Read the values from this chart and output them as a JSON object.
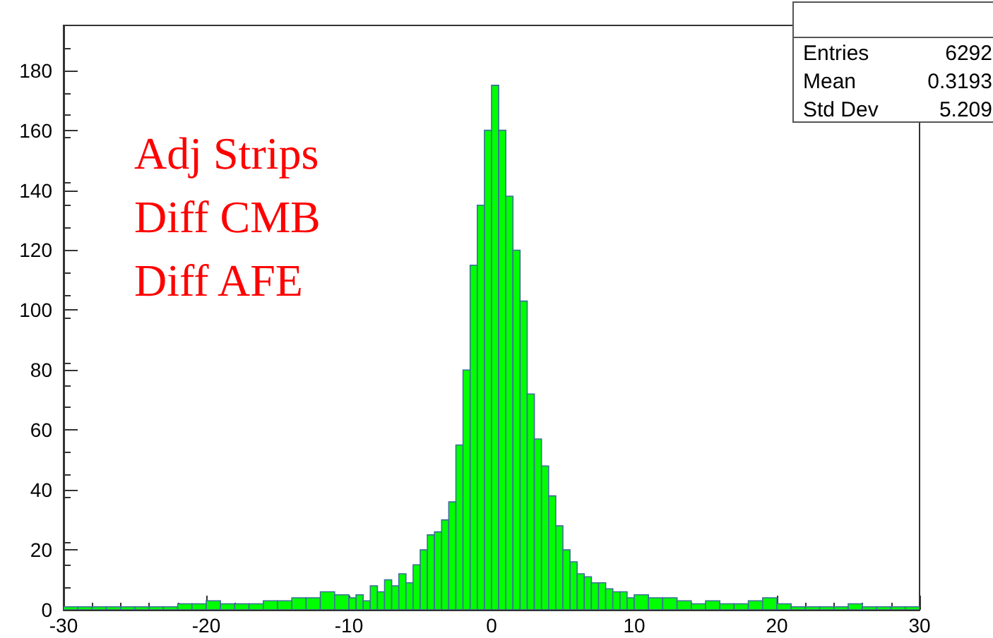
{
  "chart_data": {
    "type": "histogram",
    "bins": [
      -30,
      -29,
      -28,
      -27,
      -26,
      -25,
      -24,
      -23,
      -22,
      -21,
      -20,
      -19,
      -18,
      -17,
      -16,
      -15,
      -14,
      -13,
      -12,
      -11,
      -10,
      -9.5,
      -9,
      -8.5,
      -8,
      -7.5,
      -7,
      -6.5,
      -6,
      -5.5,
      -5,
      -4.5,
      -4,
      -3.5,
      -3,
      -2.5,
      -2,
      -1.5,
      -1,
      -0.5,
      0,
      0.5,
      1,
      1.5,
      2,
      2.5,
      3,
      3.5,
      4,
      4.5,
      5,
      5.5,
      6,
      6.5,
      7,
      7.5,
      8,
      8.5,
      9,
      9.5,
      10,
      11,
      12,
      13,
      14,
      15,
      16,
      17,
      18,
      19,
      20,
      21,
      22,
      23,
      24,
      25,
      26,
      27,
      28,
      29,
      30
    ],
    "values": [
      1,
      1,
      1,
      1,
      1,
      1,
      1,
      1,
      2,
      2,
      3,
      2,
      2,
      2,
      3,
      3,
      4,
      4,
      6,
      5,
      4,
      5,
      3,
      8,
      6,
      10,
      8,
      12,
      9,
      15,
      20,
      25,
      26,
      30,
      36,
      55,
      80,
      115,
      135,
      160,
      175,
      160,
      138,
      120,
      103,
      72,
      57,
      48,
      38,
      28,
      20,
      16,
      12,
      11,
      9,
      9,
      7,
      6,
      6,
      4,
      5,
      4,
      4,
      3,
      2,
      3,
      2,
      2,
      3,
      4,
      2,
      1,
      1,
      1,
      1,
      2,
      1,
      1,
      1,
      1
    ],
    "color": "#00ff00",
    "xlim": [
      -30,
      30
    ],
    "xticks": [
      -30,
      -20,
      -10,
      0,
      10,
      20,
      30
    ],
    "ylim": [
      0,
      195
    ],
    "yticks": [
      0,
      20,
      40,
      60,
      80,
      100,
      120,
      140,
      160,
      180
    ],
    "grid": false,
    "annotations": [
      "Adj Strips",
      "Diff CMB",
      "Diff AFE",
      "Entries",
      "6292",
      "Mean",
      "0.3193",
      "Std Dev",
      "5.209"
    ]
  }
}
